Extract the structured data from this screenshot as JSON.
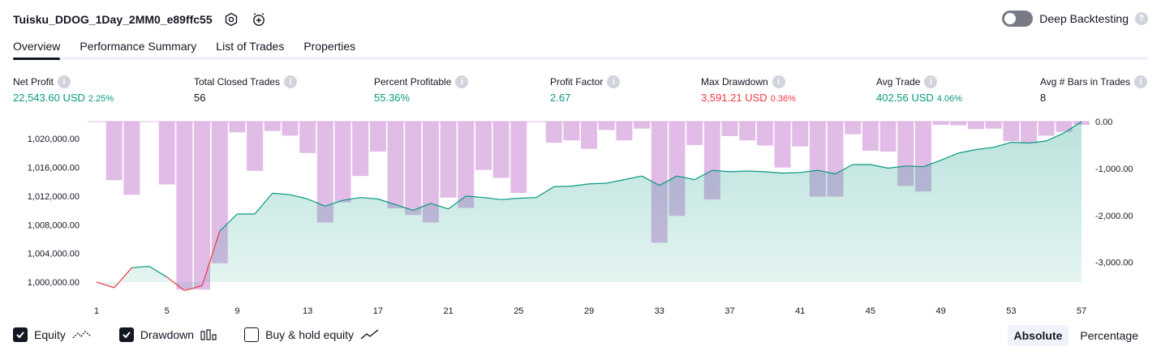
{
  "header": {
    "title": "Tuisku_DDOG_1Day_2MM0_e89ffc55",
    "settings_icon": "gear-icon",
    "alert_icon": "alarm-clock-plus-icon"
  },
  "deep_backtesting": {
    "label": "Deep Backtesting",
    "enabled": false,
    "help_icon": "question-icon"
  },
  "tabs": [
    {
      "label": "Overview",
      "active": true
    },
    {
      "label": "Performance Summary",
      "active": false
    },
    {
      "label": "List of Trades",
      "active": false
    },
    {
      "label": "Properties",
      "active": false
    }
  ],
  "metrics": [
    {
      "label": "Net Profit",
      "value": "22,543.60 USD",
      "pct": "2.25%",
      "color": "#089981"
    },
    {
      "label": "Total Closed Trades",
      "value": "56",
      "pct": "",
      "color": "#131722"
    },
    {
      "label": "Percent Profitable",
      "value": "55.36%",
      "pct": "",
      "color": "#089981"
    },
    {
      "label": "Profit Factor",
      "value": "2.67",
      "pct": "",
      "color": "#089981"
    },
    {
      "label": "Max Drawdown",
      "value": "3,591.21 USD",
      "pct": "0.36%",
      "color": "#f23645"
    },
    {
      "label": "Avg Trade",
      "value": "402.56 USD",
      "pct": "4.06%",
      "color": "#089981"
    },
    {
      "label": "Avg # Bars in Trades",
      "value": "8",
      "pct": "",
      "color": "#131722"
    }
  ],
  "chart_data": {
    "type": "area",
    "x_ticks": [
      "1",
      "5",
      "9",
      "13",
      "17",
      "21",
      "25",
      "29",
      "33",
      "37",
      "41",
      "45",
      "49",
      "53",
      "57"
    ],
    "left_axis": {
      "ticks": [
        "1,020,000.00",
        "1,016,000.00",
        "1,012,000.00",
        "1,008,000.00",
        "1,004,000.00",
        "1,000,000.00"
      ],
      "tick_values": [
        1020000,
        1016000,
        1012000,
        1008000,
        1004000,
        1000000
      ],
      "range": [
        1000000,
        1022400
      ]
    },
    "right_axis": {
      "ticks": [
        "0.00",
        "-1,000.00",
        "-2,000.00",
        "-3,000.00"
      ],
      "tick_values": [
        0,
        -1000,
        -2000,
        -3000
      ],
      "range": [
        -3420,
        0
      ]
    },
    "series": [
      {
        "name": "Equity",
        "color": "#089981",
        "x": [
          1,
          2,
          3,
          4,
          5,
          6,
          7,
          8,
          9,
          10,
          11,
          12,
          13,
          14,
          15,
          16,
          17,
          18,
          19,
          20,
          21,
          22,
          23,
          24,
          25,
          26,
          27,
          28,
          29,
          30,
          31,
          32,
          33,
          34,
          35,
          36,
          37,
          38,
          39,
          40,
          41,
          42,
          43,
          44,
          45,
          46,
          47,
          48,
          49,
          50,
          51,
          52,
          53,
          54,
          55,
          56,
          57
        ],
        "values": [
          1000000,
          999200,
          1002000,
          1002200,
          1000700,
          998800,
          999500,
          1007100,
          1009500,
          1009500,
          1012400,
          1012200,
          1011600,
          1010600,
          1011400,
          1011800,
          1011600,
          1010800,
          1010000,
          1011000,
          1010200,
          1012000,
          1011800,
          1011500,
          1011700,
          1011800,
          1013300,
          1013400,
          1013700,
          1013800,
          1014300,
          1014800,
          1013500,
          1014800,
          1014300,
          1015600,
          1015400,
          1015500,
          1015400,
          1015200,
          1015300,
          1015600,
          1015100,
          1016400,
          1016400,
          1015900,
          1016200,
          1016100,
          1017000,
          1018000,
          1018500,
          1018800,
          1019500,
          1019400,
          1019700,
          1020800,
          1022400
        ]
      },
      {
        "name": "Drawdown",
        "color": "#ce93d8",
        "x": [
          1,
          2,
          3,
          4,
          5,
          6,
          7,
          8,
          9,
          10,
          11,
          12,
          13,
          14,
          15,
          16,
          17,
          18,
          19,
          20,
          21,
          22,
          23,
          24,
          25,
          26,
          27,
          28,
          29,
          30,
          31,
          32,
          33,
          34,
          35,
          36,
          37,
          38,
          39,
          40,
          41,
          42,
          43,
          44,
          45,
          46,
          47,
          48,
          49,
          50,
          51,
          52,
          53,
          54,
          55,
          56,
          57
        ],
        "values": [
          0,
          -1250,
          -1560,
          0,
          -1340,
          -3580,
          -3580,
          -3020,
          -230,
          -1050,
          -200,
          -300,
          -670,
          -2150,
          -1720,
          -1160,
          -640,
          -1850,
          -1990,
          -2150,
          -1620,
          -1840,
          -1030,
          -1200,
          -1520,
          0,
          -450,
          -400,
          -580,
          -180,
          -400,
          -150,
          -2580,
          -2010,
          -500,
          -1660,
          -310,
          -400,
          -510,
          -980,
          -530,
          -1600,
          -1600,
          -270,
          -620,
          -640,
          -1370,
          -1490,
          -70,
          -80,
          -160,
          -150,
          -420,
          -460,
          -300,
          -220,
          -70
        ]
      }
    ],
    "legend": [
      {
        "label": "Equity",
        "checked": true,
        "icon": "equity-line-icon"
      },
      {
        "label": "Drawdown",
        "checked": true,
        "icon": "drawdown-bars-icon"
      },
      {
        "label": "Buy & hold equity",
        "checked": false,
        "icon": "buy-hold-line-icon"
      }
    ],
    "modes": [
      {
        "label": "Absolute",
        "active": true
      },
      {
        "label": "Percentage",
        "active": false
      }
    ]
  }
}
